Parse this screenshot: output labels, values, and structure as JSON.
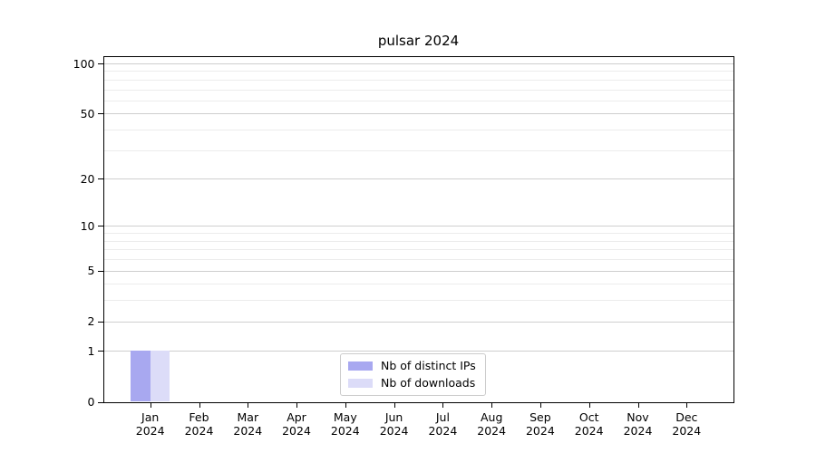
{
  "figure": {
    "background": "#ffffff"
  },
  "chart_data": {
    "type": "bar",
    "title": "pulsar 2024",
    "xlabel": "",
    "ylabel": "",
    "x_tick_labels": [
      {
        "month": "Jan",
        "year": "2024"
      },
      {
        "month": "Feb",
        "year": "2024"
      },
      {
        "month": "Mar",
        "year": "2024"
      },
      {
        "month": "Apr",
        "year": "2024"
      },
      {
        "month": "May",
        "year": "2024"
      },
      {
        "month": "Jun",
        "year": "2024"
      },
      {
        "month": "Jul",
        "year": "2024"
      },
      {
        "month": "Aug",
        "year": "2024"
      },
      {
        "month": "Sep",
        "year": "2024"
      },
      {
        "month": "Oct",
        "year": "2024"
      },
      {
        "month": "Nov",
        "year": "2024"
      },
      {
        "month": "Dec",
        "year": "2024"
      }
    ],
    "series": [
      {
        "name": "Nb of distinct IPs",
        "color": "#a8a8f0",
        "values": [
          1,
          0,
          0,
          0,
          0,
          0,
          0,
          0,
          0,
          0,
          0,
          0
        ]
      },
      {
        "name": "Nb of downloads",
        "color": "#dcdcf8",
        "values": [
          1,
          0,
          0,
          0,
          0,
          0,
          0,
          0,
          0,
          0,
          0,
          0
        ]
      }
    ],
    "y_axis": {
      "scale": "symlog",
      "range": [
        0,
        100
      ],
      "major_ticks": [
        0,
        1,
        2,
        5,
        10,
        20,
        50,
        100
      ],
      "minor_gridlines": [
        3,
        4,
        6,
        7,
        8,
        9,
        30,
        40,
        60,
        70,
        80,
        90
      ]
    },
    "legend": {
      "position": "lower center",
      "entries": [
        "Nb of distinct IPs",
        "Nb of downloads"
      ]
    },
    "grid": "on"
  }
}
